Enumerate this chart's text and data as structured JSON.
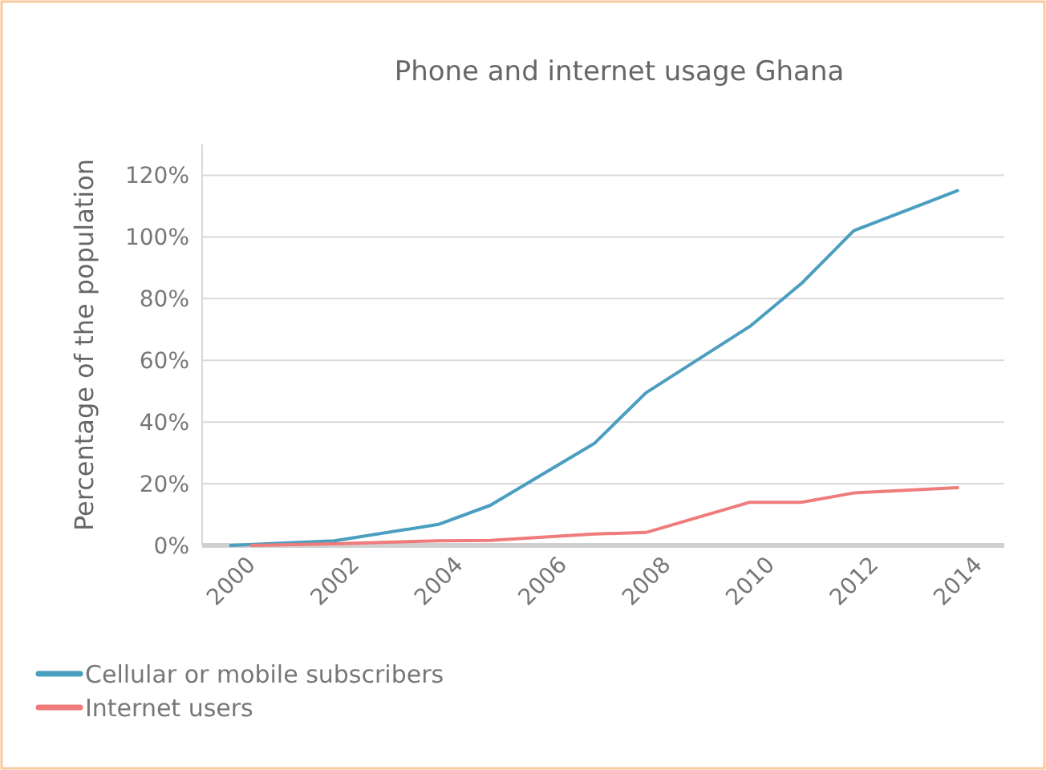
{
  "chart_data": {
    "type": "line",
    "title": "Phone and internet usage Ghana",
    "ylabel": "Percentage of the population",
    "xlim": [
      1999.45,
      2014.9
    ],
    "xticks": [
      2000,
      2002,
      2004,
      2006,
      2008,
      2010,
      2012,
      2014
    ],
    "ylim": [
      0,
      130
    ],
    "yticks": [
      {
        "value": 0,
        "label": "0%"
      },
      {
        "value": 20,
        "label": "20%"
      },
      {
        "value": 40,
        "label": "40%"
      },
      {
        "value": 60,
        "label": "60%"
      },
      {
        "value": 80,
        "label": "80%"
      },
      {
        "value": 100,
        "label": "100%"
      },
      {
        "value": 120,
        "label": "120%"
      }
    ],
    "grid": "y",
    "legend": "bottom",
    "marker": "none",
    "line_style": "solid",
    "series": [
      {
        "name": "Cellular or mobile subscribers",
        "color": "#4a9ebf",
        "x": [
          2000,
          2002,
          2004,
          2005,
          2007,
          2008,
          2010,
          2011,
          2012,
          2014
        ],
        "values": [
          0,
          1.5,
          6.8,
          13,
          33,
          49.5,
          71,
          85,
          102,
          115
        ]
      },
      {
        "name": "Internet users",
        "color": "#ef7b7b",
        "x": [
          2000.4,
          2002,
          2004,
          2005,
          2007,
          2008,
          2010,
          2011,
          2012,
          2014
        ],
        "values": [
          0,
          0.5,
          1.5,
          1.6,
          3.7,
          4.2,
          14,
          14,
          17,
          18.7
        ]
      }
    ]
  }
}
